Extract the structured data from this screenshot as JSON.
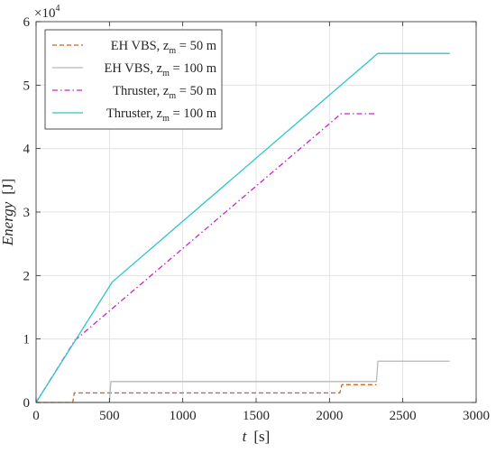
{
  "chart_data": {
    "type": "line",
    "xlabel": {
      "symbol": "t",
      "unit": "[s]"
    },
    "ylabel": {
      "symbol": "Energy",
      "unit": "[J]"
    },
    "xlim": [
      0,
      3000
    ],
    "ylim": [
      0,
      60000
    ],
    "xticks": [
      0,
      500,
      1000,
      1500,
      2000,
      2500,
      3000
    ],
    "yticks": [
      0,
      1,
      2,
      3,
      4,
      5,
      6
    ],
    "y_multiplier": "×10",
    "y_multiplier_exp": "4",
    "grid": true,
    "legend_placement": "top-left",
    "series": [
      {
        "name": "EH VBS, z",
        "name_sub": "m",
        "name_suffix": " = 50 m",
        "color": "#c8652a",
        "dash": "dashed",
        "x": [
          0,
          250,
          260,
          2070,
          2085,
          2320
        ],
        "y": [
          0,
          0,
          1500,
          1500,
          2800,
          2800
        ]
      },
      {
        "name": "EH VBS, z",
        "name_sub": "m",
        "name_suffix": " = 100 m",
        "color": "#b8b8b8",
        "dash": "solid",
        "x": [
          0,
          500,
          510,
          2320,
          2330,
          2820
        ],
        "y": [
          0,
          0,
          3300,
          3300,
          6500,
          6500
        ]
      },
      {
        "name": "Thruster, z",
        "name_sub": "m",
        "name_suffix": " = 50 m",
        "color": "#cc22cc",
        "dash": "dashdot",
        "x": [
          0,
          265,
          2080,
          2320
        ],
        "y": [
          0,
          9800,
          45500,
          45500
        ]
      },
      {
        "name": "Thruster, z",
        "name_sub": "m",
        "name_suffix": " = 100 m",
        "color": "#2ec4cc",
        "dash": "solid",
        "x": [
          0,
          520,
          2330,
          2820
        ],
        "y": [
          0,
          19000,
          55000,
          55000
        ]
      }
    ]
  }
}
